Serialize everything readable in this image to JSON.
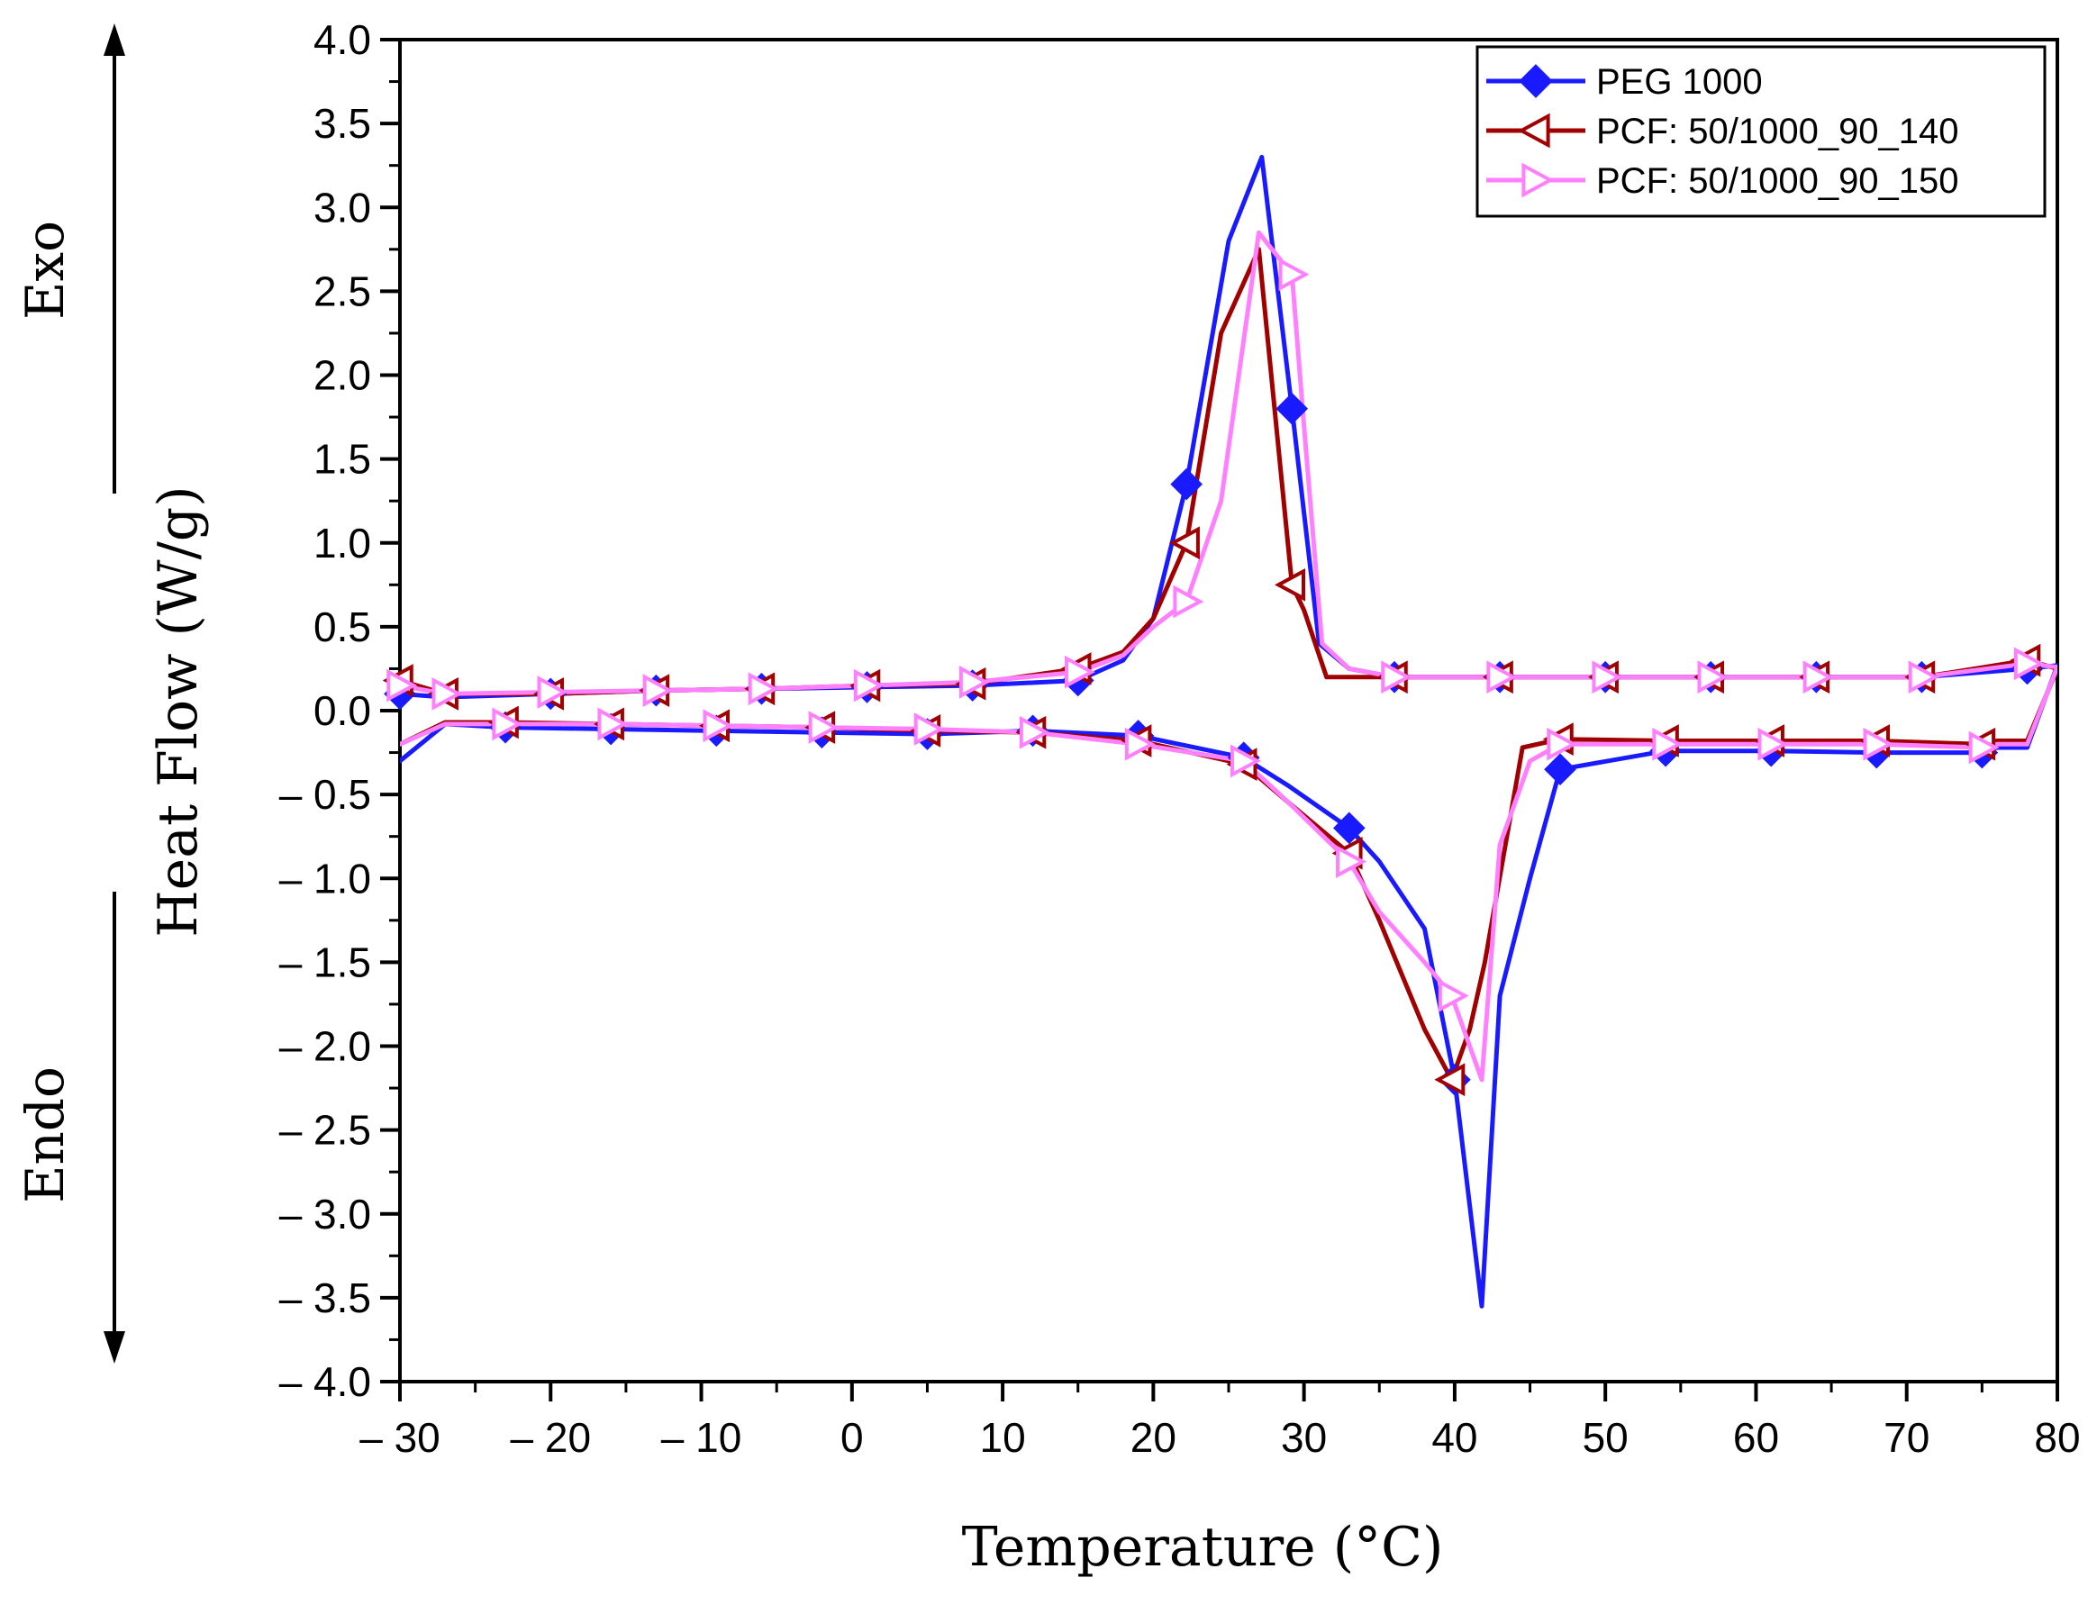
{
  "chart_data": {
    "type": "line",
    "title": "",
    "xlabel": "Temperature (°C)",
    "ylabel": "Heat Flow (W/g)",
    "xlim": [
      -30,
      80
    ],
    "ylim": [
      -4.0,
      4.0
    ],
    "x_ticks": [
      "– 30",
      "– 20",
      "– 10",
      "0",
      "10",
      "20",
      "30",
      "40",
      "50",
      "60",
      "70",
      "80"
    ],
    "x_tick_values": [
      -30,
      -20,
      -10,
      0,
      10,
      20,
      30,
      40,
      50,
      60,
      70,
      80
    ],
    "y_ticks": [
      "4.0",
      "3.5",
      "3.0",
      "2.5",
      "2.0",
      "1.5",
      "1.0",
      "0.5",
      "0.0",
      "– 0.5",
      "– 1.0",
      "– 1.5",
      "– 2.0",
      "– 2.5",
      "– 3.0",
      "– 3.5",
      "– 4.0"
    ],
    "y_tick_values": [
      4.0,
      3.5,
      3.0,
      2.5,
      2.0,
      1.5,
      1.0,
      0.5,
      0.0,
      -0.5,
      -1.0,
      -1.5,
      -2.0,
      -2.5,
      -3.0,
      -3.5,
      -4.0
    ],
    "annotations": {
      "exo": "Exo",
      "endo": "Endo"
    },
    "legend_position": "top-right",
    "series": [
      {
        "name": "PEG 1000",
        "color": "#1a1aff",
        "marker": "diamond",
        "marker_fill": "#1a1aff",
        "x": [
          -30,
          -27,
          -20,
          -13,
          -6,
          1,
          8,
          15,
          18,
          20,
          22.2,
          25,
          27.2,
          29.2,
          31,
          33,
          36,
          43,
          50,
          57,
          64,
          71,
          78,
          80,
          78,
          76,
          75,
          68,
          61,
          54,
          47,
          45,
          43,
          41.8,
          40,
          38,
          35,
          33,
          29,
          26,
          19,
          12,
          5,
          -2,
          -9,
          -16,
          -23,
          -27,
          -30
        ],
        "y": [
          0.1,
          0.08,
          0.1,
          0.12,
          0.13,
          0.14,
          0.15,
          0.18,
          0.3,
          0.55,
          1.35,
          2.8,
          3.3,
          1.8,
          0.4,
          0.25,
          0.2,
          0.2,
          0.2,
          0.2,
          0.2,
          0.2,
          0.25,
          0.27,
          -0.22,
          -0.22,
          -0.25,
          -0.25,
          -0.24,
          -0.24,
          -0.35,
          -1.0,
          -1.7,
          -3.55,
          -2.2,
          -1.3,
          -0.9,
          -0.7,
          -0.45,
          -0.28,
          -0.15,
          -0.12,
          -0.14,
          -0.13,
          -0.12,
          -0.11,
          -0.1,
          -0.08,
          -0.3
        ],
        "marker_x": [
          -30,
          -20,
          -13,
          -6,
          1,
          8,
          15,
          22.2,
          29.2,
          36,
          43,
          50,
          57,
          64,
          71,
          78,
          75,
          68,
          61,
          54,
          47,
          40,
          33,
          26,
          19,
          12,
          5,
          -2,
          -9,
          -16,
          -23
        ],
        "marker_y": [
          0.1,
          0.1,
          0.12,
          0.13,
          0.14,
          0.15,
          0.18,
          1.35,
          1.8,
          0.2,
          0.2,
          0.2,
          0.2,
          0.2,
          0.2,
          0.25,
          -0.25,
          -0.25,
          -0.24,
          -0.24,
          -0.35,
          -2.2,
          -0.7,
          -0.28,
          -0.15,
          -0.12,
          -0.14,
          -0.13,
          -0.12,
          -0.11,
          -0.1
        ]
      },
      {
        "name": "PCF: 50/1000_90_140",
        "color": "#a00000",
        "marker": "triangle-left",
        "marker_fill": "#ffffff",
        "x": [
          -30,
          -27,
          -20,
          -13,
          -6,
          1,
          8,
          15,
          18,
          20,
          22.2,
          24.5,
          27,
          29.2,
          30,
          31.5,
          36,
          43,
          50,
          57,
          64,
          71,
          78,
          80,
          78,
          76,
          75,
          68,
          61,
          54,
          47,
          44.5,
          42,
          41,
          39.8,
          38,
          35,
          33,
          29,
          26,
          19,
          12,
          5,
          -2,
          -9,
          -16,
          -23,
          -27,
          -30
        ],
        "y": [
          0.18,
          0.1,
          0.1,
          0.12,
          0.13,
          0.15,
          0.16,
          0.25,
          0.35,
          0.55,
          1.0,
          2.25,
          2.75,
          0.75,
          0.6,
          0.2,
          0.2,
          0.2,
          0.2,
          0.2,
          0.2,
          0.2,
          0.3,
          0.25,
          -0.18,
          -0.18,
          -0.2,
          -0.18,
          -0.18,
          -0.18,
          -0.17,
          -0.22,
          -1.5,
          -1.9,
          -2.2,
          -1.9,
          -1.25,
          -0.85,
          -0.55,
          -0.32,
          -0.18,
          -0.13,
          -0.12,
          -0.1,
          -0.09,
          -0.08,
          -0.07,
          -0.07,
          -0.2
        ],
        "marker_x": [
          -30,
          -27,
          -20,
          -13,
          -6,
          1,
          8,
          15,
          22.2,
          29.2,
          36,
          43,
          50,
          57,
          64,
          71,
          78,
          75,
          68,
          61,
          54,
          47,
          39.8,
          33,
          26,
          19,
          12,
          5,
          -2,
          -9,
          -16,
          -23
        ],
        "marker_y": [
          0.18,
          0.1,
          0.1,
          0.12,
          0.13,
          0.15,
          0.16,
          0.25,
          1.0,
          0.75,
          0.2,
          0.2,
          0.2,
          0.2,
          0.2,
          0.2,
          0.3,
          -0.2,
          -0.18,
          -0.18,
          -0.18,
          -0.17,
          -2.2,
          -0.85,
          -0.32,
          -0.18,
          -0.13,
          -0.12,
          -0.1,
          -0.09,
          -0.08,
          -0.07
        ]
      },
      {
        "name": "PCF: 50/1000_90_150",
        "color": "#ff80ff",
        "marker": "triangle-right",
        "marker_fill": "#ffffff",
        "x": [
          -30,
          -27,
          -20,
          -13,
          -6,
          1,
          8,
          15,
          18,
          20,
          22.2,
          24.5,
          27,
          29.2,
          30,
          31.2,
          33,
          36,
          43,
          50,
          57,
          64,
          71,
          78,
          80,
          78,
          76,
          75,
          68,
          61,
          54,
          47,
          45,
          43,
          41.8,
          39.8,
          38,
          35,
          33,
          29,
          26,
          19,
          12,
          5,
          -2,
          -9,
          -16,
          -23,
          -27,
          -30
        ],
        "y": [
          0.15,
          0.1,
          0.11,
          0.12,
          0.13,
          0.15,
          0.17,
          0.23,
          0.33,
          0.5,
          0.65,
          1.25,
          2.85,
          2.6,
          1.7,
          0.4,
          0.25,
          0.2,
          0.2,
          0.2,
          0.2,
          0.2,
          0.2,
          0.28,
          0.26,
          -0.2,
          -0.2,
          -0.22,
          -0.2,
          -0.2,
          -0.2,
          -0.2,
          -0.3,
          -0.8,
          -2.2,
          -1.7,
          -1.5,
          -1.2,
          -0.9,
          -0.55,
          -0.3,
          -0.2,
          -0.13,
          -0.11,
          -0.1,
          -0.09,
          -0.08,
          -0.08,
          -0.08,
          -0.2
        ],
        "marker_x": [
          -30,
          -27,
          -20,
          -13,
          -6,
          1,
          8,
          15,
          22.2,
          29.2,
          36,
          43,
          50,
          57,
          64,
          71,
          78,
          75,
          68,
          61,
          54,
          47,
          39.8,
          33,
          26,
          19,
          12,
          5,
          -2,
          -9,
          -16,
          -23
        ],
        "marker_y": [
          0.15,
          0.1,
          0.11,
          0.12,
          0.13,
          0.15,
          0.17,
          0.23,
          0.65,
          2.6,
          0.2,
          0.2,
          0.2,
          0.2,
          0.2,
          0.2,
          0.28,
          -0.22,
          -0.2,
          -0.2,
          -0.2,
          -0.2,
          -1.7,
          -0.9,
          -0.3,
          -0.2,
          -0.13,
          -0.11,
          -0.1,
          -0.09,
          -0.08,
          -0.08
        ]
      }
    ]
  }
}
